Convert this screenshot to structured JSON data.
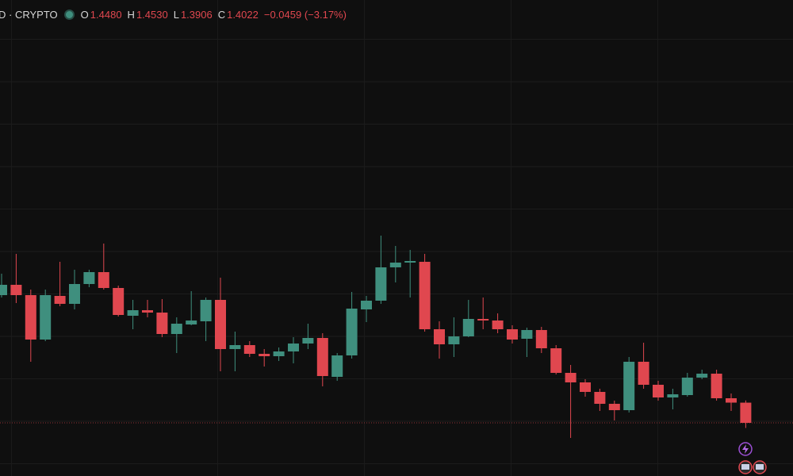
{
  "chart_data": {
    "type": "candlestick",
    "symbol": "D · CRYPTO",
    "legend": [
      {
        "label": "O",
        "value": "1.4480"
      },
      {
        "label": "H",
        "value": "1.4530"
      },
      {
        "label": "L",
        "value": "1.3906"
      },
      {
        "label": "C",
        "value": "1.4022"
      }
    ],
    "change": "−0.0459 (−3.17%)",
    "up_color": "#3f8f7e",
    "down_color": "#e0474f",
    "ylim": [
      1.2816,
      2.3616
    ],
    "categories": [
      null,
      null,
      null,
      null,
      null,
      null,
      null,
      null,
      null,
      null,
      null,
      null,
      null,
      null,
      null,
      null,
      null,
      null,
      null,
      null,
      null,
      null,
      null,
      null,
      null,
      null,
      null,
      null,
      null,
      null,
      null,
      null,
      null,
      null,
      null,
      null,
      null,
      null,
      null,
      null,
      null,
      null,
      null,
      null,
      null,
      null,
      null,
      null,
      null,
      null,
      null,
      null
    ],
    "open": [
      1.692,
      1.7154,
      1.692,
      1.5912,
      1.6902,
      1.6722,
      1.7172,
      1.7442,
      1.7082,
      1.6452,
      1.6578,
      1.6524,
      1.6038,
      1.6254,
      1.6326,
      1.6812,
      1.5696,
      1.5786,
      1.5588,
      1.5534,
      1.5642,
      1.5822,
      1.5948,
      1.5066,
      1.5552,
      1.6596,
      1.6794,
      1.755,
      1.7658,
      1.7676,
      1.6146,
      1.5804,
      1.5984,
      1.638,
      1.6344,
      1.6146,
      1.593,
      1.6128,
      1.5714,
      1.5156,
      1.494,
      1.4724,
      1.4454,
      1.431,
      1.5408,
      1.4886,
      1.4598,
      1.4652,
      1.5048,
      1.5138,
      1.458,
      1.448
    ],
    "high": [
      1.7406,
      1.7856,
      1.7046,
      1.7046,
      1.7676,
      1.7496,
      1.7496,
      1.809,
      1.7136,
      1.6812,
      1.6812,
      1.683,
      1.6416,
      1.701,
      1.6866,
      1.7316,
      1.6092,
      1.5876,
      1.5696,
      1.5732,
      1.5966,
      1.6272,
      1.6056,
      1.5606,
      1.6992,
      1.6902,
      1.827,
      1.8036,
      1.7946,
      1.7856,
      1.6326,
      1.6416,
      1.6812,
      1.6866,
      1.6506,
      1.6236,
      1.6182,
      1.62,
      1.5786,
      1.5336,
      1.5012,
      1.4796,
      1.4526,
      1.5516,
      1.584,
      1.4976,
      1.4796,
      1.5156,
      1.5228,
      1.5228,
      1.4688,
      1.453
    ],
    "low": [
      1.6866,
      1.674,
      1.5408,
      1.5876,
      1.6668,
      1.6596,
      1.71,
      1.7046,
      1.6434,
      1.6146,
      1.6416,
      1.5966,
      1.5606,
      1.6236,
      1.5876,
      1.5192,
      1.5192,
      1.5516,
      1.53,
      1.5426,
      1.5372,
      1.5696,
      1.485,
      1.4976,
      1.548,
      1.6308,
      1.6722,
      1.7208,
      1.6866,
      1.6092,
      1.548,
      1.5516,
      1.5966,
      1.6146,
      1.6056,
      1.5822,
      1.5516,
      1.5606,
      1.512,
      1.368,
      1.4616,
      1.4292,
      1.4076,
      1.4256,
      1.4796,
      1.4526,
      1.4328,
      1.4616,
      1.5012,
      1.4526,
      1.4292,
      1.3906
    ],
    "close": [
      1.7154,
      1.692,
      1.5912,
      1.692,
      1.6722,
      1.7172,
      1.7442,
      1.7082,
      1.647,
      1.6578,
      1.6524,
      1.6038,
      1.6272,
      1.6344,
      1.6812,
      1.5696,
      1.5786,
      1.5588,
      1.5534,
      1.5642,
      1.5822,
      1.5948,
      1.5084,
      1.5552,
      1.6614,
      1.6794,
      1.755,
      1.7658,
      1.7694,
      1.6146,
      1.5804,
      1.5984,
      1.638,
      1.6344,
      1.6146,
      1.5912,
      1.6128,
      1.5714,
      1.5156,
      1.494,
      1.4724,
      1.4454,
      1.431,
      1.5408,
      1.4886,
      1.4598,
      1.467,
      1.5048,
      1.5138,
      1.458,
      1.4481,
      1.4022
    ]
  }
}
